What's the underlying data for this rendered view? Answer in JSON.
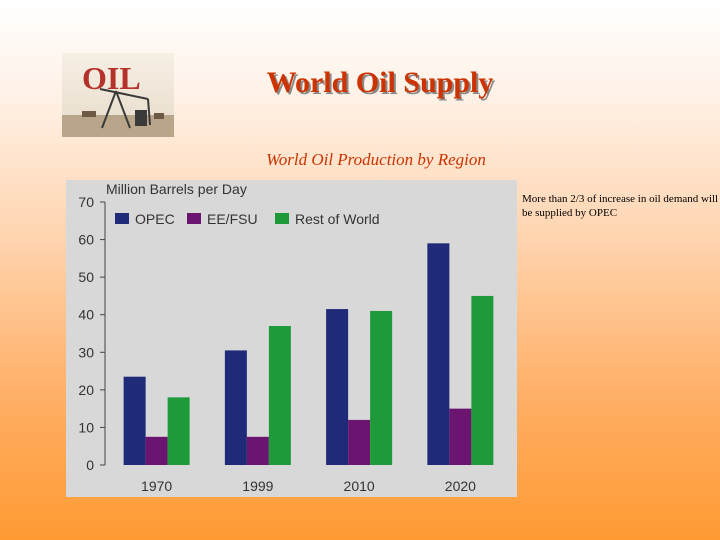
{
  "slide": {
    "title": "World Oil Supply",
    "subtitle": "World Oil Production by Region",
    "note": "More than 2/3 of increase in oil demand will be supplied by OPEC",
    "logo_text": "OIL"
  },
  "colors": {
    "title": "#cc3300",
    "OPEC": "#1f2a78",
    "EE/FSU": "#6b1470",
    "Rest of World": "#1e9a3a"
  },
  "chart_data": {
    "type": "bar",
    "title": "",
    "unit_label": "Million Barrels per Day",
    "xlabel": "",
    "ylabel": "",
    "categories": [
      "1970",
      "1999",
      "2010",
      "2020"
    ],
    "series": [
      {
        "name": "OPEC",
        "values": [
          23.5,
          30.5,
          41.5,
          59
        ]
      },
      {
        "name": "EE/FSU",
        "values": [
          7.5,
          7.5,
          12,
          15
        ]
      },
      {
        "name": "Rest of World",
        "values": [
          18,
          37,
          41,
          45
        ]
      }
    ],
    "ylim": [
      0,
      70
    ],
    "yticks": [
      0,
      10,
      20,
      30,
      40,
      50,
      60,
      70
    ],
    "legend_position": "top-left",
    "grid": false
  }
}
